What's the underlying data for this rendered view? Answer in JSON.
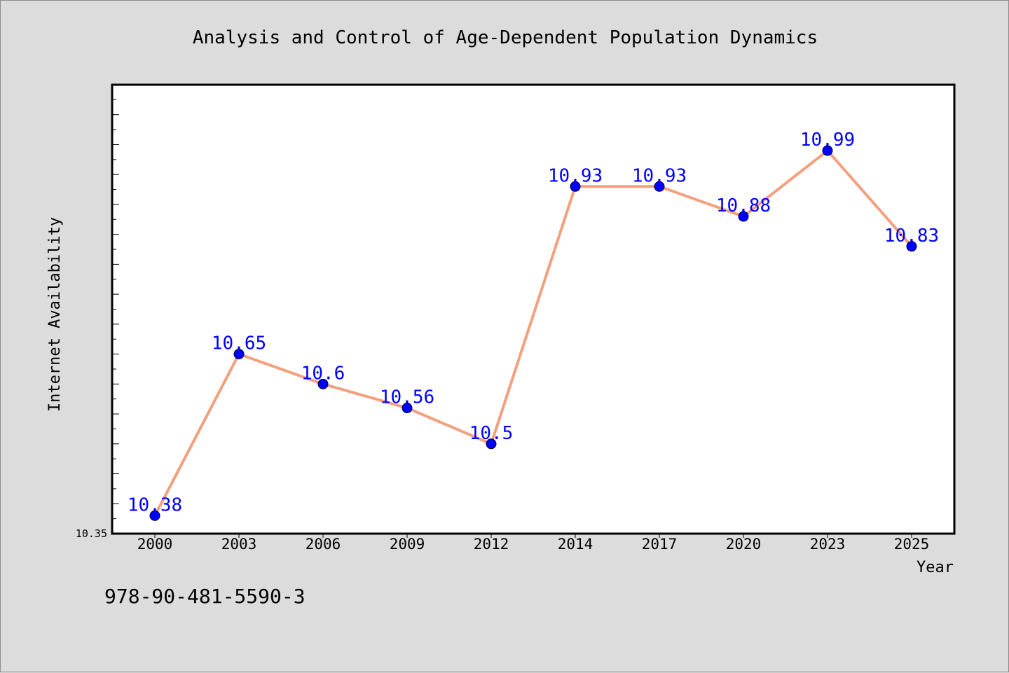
{
  "chart_data": {
    "type": "line",
    "title": "Analysis and Control of Age-Dependent Population Dynamics",
    "xlabel": "Year",
    "ylabel": "Internet Availability",
    "categories": [
      "2000",
      "2003",
      "2006",
      "2009",
      "2012",
      "2014",
      "2017",
      "2020",
      "2023",
      "2025"
    ],
    "series": [
      {
        "values": [
          10.38,
          10.65,
          10.6,
          10.56,
          10.5,
          10.93,
          10.93,
          10.88,
          10.99,
          10.83
        ],
        "labels": [
          "10.38",
          "10.65",
          "10.6",
          "10.56",
          "10.5",
          "10.93",
          "10.93",
          "10.88",
          "10.99",
          "10.83"
        ],
        "line_color": "#f4a07f",
        "marker_color": "#0000ff"
      }
    ],
    "ylim": [
      10.35,
      11.1
    ],
    "ytick_labels": [
      "10.35"
    ],
    "grid": false
  },
  "footer": {
    "isbn": "978-90-481-5590-3"
  }
}
